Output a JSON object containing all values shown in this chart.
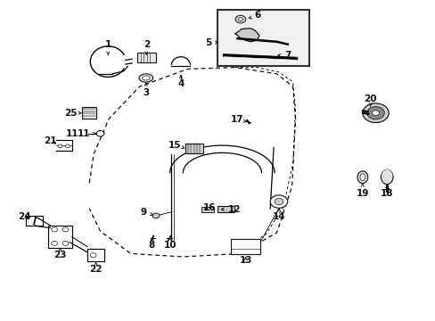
{
  "bg_color": "#ffffff",
  "lc": "#1a1a1a",
  "figsize": [
    4.89,
    3.6
  ],
  "dpi": 100,
  "labels": {
    "1": [
      0.245,
      0.845,
      0.245,
      0.88
    ],
    "2": [
      0.34,
      0.83,
      0.34,
      0.87
    ],
    "3": [
      0.34,
      0.74,
      0.34,
      0.71
    ],
    "4": [
      0.415,
      0.795,
      0.415,
      0.762
    ],
    "5": [
      0.51,
      0.87,
      0.493,
      0.87
    ],
    "6": [
      0.68,
      0.93,
      0.7,
      0.94
    ],
    "7": [
      0.68,
      0.83,
      0.705,
      0.83
    ],
    "8": [
      0.345,
      0.255,
      0.345,
      0.228
    ],
    "9": [
      0.356,
      0.31,
      0.335,
      0.318
    ],
    "10": [
      0.388,
      0.255,
      0.388,
      0.228
    ],
    "11": [
      0.218,
      0.585,
      0.196,
      0.585
    ],
    "12": [
      0.54,
      0.348,
      0.568,
      0.348
    ],
    "13": [
      0.565,
      0.215,
      0.565,
      0.195
    ],
    "14": [
      0.638,
      0.36,
      0.638,
      0.338
    ],
    "15": [
      0.438,
      0.52,
      0.415,
      0.53
    ],
    "16": [
      0.468,
      0.348,
      0.488,
      0.353
    ],
    "17": [
      0.562,
      0.62,
      0.54,
      0.628
    ],
    "18": [
      0.888,
      0.432,
      0.888,
      0.405
    ],
    "19": [
      0.832,
      0.43,
      0.832,
      0.4
    ],
    "20": [
      0.862,
      0.68,
      0.862,
      0.7
    ],
    "21": [
      0.135,
      0.572,
      0.118,
      0.583
    ],
    "22": [
      0.228,
      0.168,
      0.228,
      0.145
    ],
    "23": [
      0.135,
      0.222,
      0.135,
      0.2
    ],
    "24": [
      0.072,
      0.31,
      0.056,
      0.323
    ],
    "25": [
      0.178,
      0.648,
      0.158,
      0.648
    ]
  }
}
